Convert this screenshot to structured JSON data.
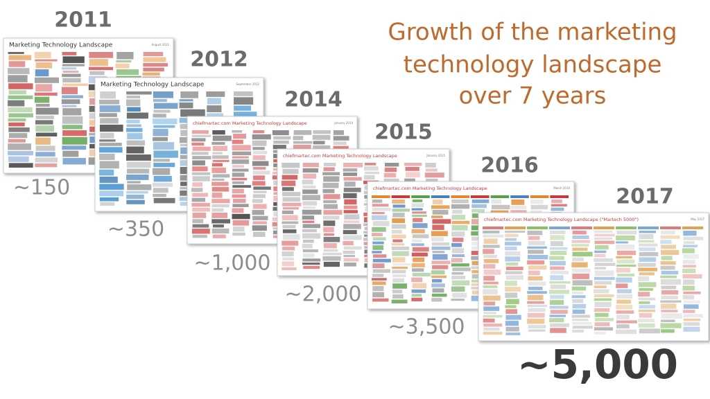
{
  "title": {
    "lines": [
      "Growth of the marketing",
      "technology landscape",
      "over 7 years"
    ]
  },
  "items": [
    {
      "year": "2011",
      "count": "~150",
      "heading": "Marketing Technology Landscape",
      "date": "August 2011"
    },
    {
      "year": "2012",
      "count": "~350",
      "heading": "Marketing Technology Landscape",
      "date": "September 2012"
    },
    {
      "year": "2014",
      "count": "~1,000",
      "heading": "chiefmartec.com Marketing Technology Landscape",
      "date": "January 2014"
    },
    {
      "year": "2015",
      "count": "~2,000",
      "heading": "chiefmartec.com Marketing Technology Landscape",
      "date": "January 2015"
    },
    {
      "year": "2016",
      "count": "~3,500",
      "heading": "chiefmartec.com Marketing Technology Landscape",
      "date": "March 2016"
    },
    {
      "year": "2017",
      "count": "~5,000",
      "heading": "chiefmartec.com Marketing Technology Landscape (\"Martech 5000\")",
      "date": "May 2017"
    }
  ]
}
